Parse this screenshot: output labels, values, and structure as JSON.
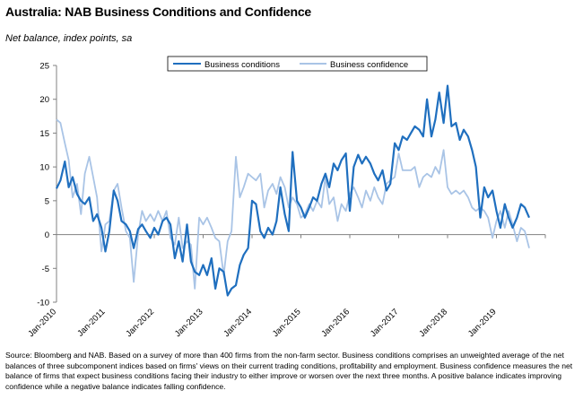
{
  "title": "Australia: NAB Business Conditions and Confidence",
  "subtitle": "Net balance, index points, sa",
  "source": "Source: Bloomberg and NAB. Based on a survey of more than 400 firms from the non-farm sector.  Business conditions comprises an unweighted average of the net balances of three subcomponent indices based on firms' views on their current trading conditions, profitability and employment.  Business confidence measures the net balance of firms that expect business conditions facing their industry to either improve or worsen over the next three months.  A positive balance indicates improving confidence while a negative balance indicates falling confidence.",
  "colors": {
    "conditions": "#1f6fbf",
    "confidence": "#a9c4e6",
    "axis": "#808080"
  },
  "chart_data": {
    "type": "line",
    "title": "Australia: NAB Business Conditions and Confidence",
    "ylabel": "Net balance, index points, sa",
    "ylim": [
      -10,
      25
    ],
    "yticks": [
      -10,
      -5,
      0,
      5,
      10,
      15,
      20,
      25
    ],
    "xlim": [
      2010.0,
      2020.0
    ],
    "xticks": [
      {
        "label": "Jan-2010",
        "x": 2010.0
      },
      {
        "label": "Jan-2011",
        "x": 2011.0
      },
      {
        "label": "Jan-2012",
        "x": 2012.0
      },
      {
        "label": "Jan-2013",
        "x": 2013.0
      },
      {
        "label": "Jan-2014",
        "x": 2014.0
      },
      {
        "label": "Jan-2015",
        "x": 2015.0
      },
      {
        "label": "Jan-2016",
        "x": 2016.0
      },
      {
        "label": "Jan-2017",
        "x": 2017.0
      },
      {
        "label": "Jan-2018",
        "x": 2018.0
      },
      {
        "label": "Jan-2019",
        "x": 2019.0
      }
    ],
    "legend_position": "top",
    "series": [
      {
        "name": "Business conditions",
        "points": [
          [
            2010.0,
            6.8
          ],
          [
            2010.08,
            8.0
          ],
          [
            2010.17,
            10.8
          ],
          [
            2010.25,
            7.0
          ],
          [
            2010.33,
            8.5
          ],
          [
            2010.42,
            6.0
          ],
          [
            2010.5,
            5.0
          ],
          [
            2010.58,
            4.5
          ],
          [
            2010.67,
            5.5
          ],
          [
            2010.75,
            2.0
          ],
          [
            2010.83,
            3.0
          ],
          [
            2010.92,
            1.0
          ],
          [
            2011.0,
            -2.5
          ],
          [
            2011.08,
            0.5
          ],
          [
            2011.17,
            6.5
          ],
          [
            2011.25,
            5.0
          ],
          [
            2011.33,
            2.0
          ],
          [
            2011.42,
            1.5
          ],
          [
            2011.5,
            0.5
          ],
          [
            2011.58,
            -2.0
          ],
          [
            2011.67,
            0.8
          ],
          [
            2011.75,
            1.5
          ],
          [
            2011.83,
            0.5
          ],
          [
            2011.92,
            -0.5
          ],
          [
            2012.0,
            1.0
          ],
          [
            2012.08,
            0.0
          ],
          [
            2012.17,
            2.0
          ],
          [
            2012.25,
            2.5
          ],
          [
            2012.33,
            1.5
          ],
          [
            2012.42,
            -3.5
          ],
          [
            2012.5,
            -1.0
          ],
          [
            2012.58,
            -4.0
          ],
          [
            2012.67,
            1.5
          ],
          [
            2012.75,
            -4.0
          ],
          [
            2012.83,
            -5.5
          ],
          [
            2012.92,
            -6.0
          ],
          [
            2013.0,
            -4.5
          ],
          [
            2013.08,
            -6.0
          ],
          [
            2013.17,
            -3.5
          ],
          [
            2013.25,
            -8.0
          ],
          [
            2013.33,
            -5.0
          ],
          [
            2013.42,
            -5.5
          ],
          [
            2013.5,
            -9.0
          ],
          [
            2013.58,
            -8.0
          ],
          [
            2013.67,
            -7.5
          ],
          [
            2013.75,
            -4.5
          ],
          [
            2013.83,
            -3.0
          ],
          [
            2013.92,
            -2.0
          ],
          [
            2014.0,
            5.0
          ],
          [
            2014.08,
            4.5
          ],
          [
            2014.17,
            0.5
          ],
          [
            2014.25,
            -0.5
          ],
          [
            2014.33,
            1.0
          ],
          [
            2014.42,
            0.0
          ],
          [
            2014.5,
            2.0
          ],
          [
            2014.58,
            7.0
          ],
          [
            2014.67,
            3.0
          ],
          [
            2014.75,
            0.5
          ],
          [
            2014.83,
            12.2
          ],
          [
            2014.92,
            5.0
          ],
          [
            2015.0,
            4.0
          ],
          [
            2015.08,
            2.5
          ],
          [
            2015.17,
            4.0
          ],
          [
            2015.25,
            5.5
          ],
          [
            2015.33,
            5.0
          ],
          [
            2015.42,
            7.5
          ],
          [
            2015.5,
            9.0
          ],
          [
            2015.58,
            7.0
          ],
          [
            2015.67,
            10.5
          ],
          [
            2015.75,
            9.5
          ],
          [
            2015.83,
            11.0
          ],
          [
            2015.92,
            12.0
          ],
          [
            2016.0,
            3.5
          ],
          [
            2016.08,
            10.0
          ],
          [
            2016.17,
            11.8
          ],
          [
            2016.25,
            10.5
          ],
          [
            2016.33,
            11.5
          ],
          [
            2016.42,
            10.5
          ],
          [
            2016.5,
            9.0
          ],
          [
            2016.58,
            8.0
          ],
          [
            2016.67,
            9.5
          ],
          [
            2016.75,
            6.5
          ],
          [
            2016.83,
            7.5
          ],
          [
            2016.92,
            13.5
          ],
          [
            2017.0,
            12.5
          ],
          [
            2017.08,
            14.5
          ],
          [
            2017.17,
            14.0
          ],
          [
            2017.25,
            15.0
          ],
          [
            2017.33,
            16.0
          ],
          [
            2017.42,
            15.5
          ],
          [
            2017.5,
            14.5
          ],
          [
            2017.58,
            20.0
          ],
          [
            2017.67,
            14.5
          ],
          [
            2017.75,
            17.0
          ],
          [
            2017.83,
            21.0
          ],
          [
            2017.92,
            16.5
          ],
          [
            2018.0,
            22.0
          ],
          [
            2018.08,
            16.0
          ],
          [
            2018.17,
            16.5
          ],
          [
            2018.25,
            14.0
          ],
          [
            2018.33,
            15.5
          ],
          [
            2018.42,
            14.5
          ],
          [
            2018.5,
            12.5
          ],
          [
            2018.58,
            10.0
          ],
          [
            2018.67,
            2.5
          ],
          [
            2018.75,
            7.0
          ],
          [
            2018.83,
            5.5
          ],
          [
            2018.92,
            6.5
          ],
          [
            2019.0,
            3.5
          ],
          [
            2019.08,
            1.0
          ],
          [
            2019.17,
            4.5
          ],
          [
            2019.25,
            2.5
          ],
          [
            2019.33,
            1.0
          ],
          [
            2019.42,
            2.5
          ],
          [
            2019.5,
            4.5
          ],
          [
            2019.58,
            4.0
          ],
          [
            2019.67,
            2.5
          ]
        ]
      },
      {
        "name": "Business confidence",
        "points": [
          [
            2010.0,
            17.0
          ],
          [
            2010.08,
            16.5
          ],
          [
            2010.17,
            13.5
          ],
          [
            2010.25,
            11.0
          ],
          [
            2010.33,
            5.5
          ],
          [
            2010.42,
            7.5
          ],
          [
            2010.5,
            3.0
          ],
          [
            2010.58,
            9.0
          ],
          [
            2010.67,
            11.5
          ],
          [
            2010.75,
            8.5
          ],
          [
            2010.83,
            5.5
          ],
          [
            2010.92,
            -2.5
          ],
          [
            2011.0,
            1.5
          ],
          [
            2011.08,
            2.0
          ],
          [
            2011.17,
            6.5
          ],
          [
            2011.25,
            7.5
          ],
          [
            2011.33,
            4.0
          ],
          [
            2011.42,
            0.5
          ],
          [
            2011.5,
            -0.5
          ],
          [
            2011.58,
            -7.0
          ],
          [
            2011.67,
            0.0
          ],
          [
            2011.75,
            3.5
          ],
          [
            2011.83,
            2.0
          ],
          [
            2011.92,
            3.0
          ],
          [
            2012.0,
            2.0
          ],
          [
            2012.08,
            3.5
          ],
          [
            2012.17,
            2.0
          ],
          [
            2012.25,
            3.5
          ],
          [
            2012.33,
            -0.5
          ],
          [
            2012.42,
            -1.5
          ],
          [
            2012.5,
            2.5
          ],
          [
            2012.58,
            -2.0
          ],
          [
            2012.67,
            -1.0
          ],
          [
            2012.75,
            -1.5
          ],
          [
            2012.83,
            -8.0
          ],
          [
            2012.92,
            2.5
          ],
          [
            2013.0,
            1.5
          ],
          [
            2013.08,
            2.5
          ],
          [
            2013.17,
            1.0
          ],
          [
            2013.25,
            -0.5
          ],
          [
            2013.33,
            -1.0
          ],
          [
            2013.42,
            -6.0
          ],
          [
            2013.5,
            -1.0
          ],
          [
            2013.58,
            0.5
          ],
          [
            2013.67,
            11.5
          ],
          [
            2013.75,
            5.5
          ],
          [
            2013.83,
            7.0
          ],
          [
            2013.92,
            9.0
          ],
          [
            2014.0,
            8.5
          ],
          [
            2014.08,
            8.0
          ],
          [
            2014.17,
            9.0
          ],
          [
            2014.25,
            4.0
          ],
          [
            2014.33,
            6.5
          ],
          [
            2014.42,
            7.5
          ],
          [
            2014.5,
            6.0
          ],
          [
            2014.58,
            8.5
          ],
          [
            2014.67,
            7.0
          ],
          [
            2014.75,
            4.0
          ],
          [
            2014.83,
            5.5
          ],
          [
            2014.92,
            4.5
          ],
          [
            2015.0,
            2.5
          ],
          [
            2015.08,
            3.0
          ],
          [
            2015.17,
            4.5
          ],
          [
            2015.25,
            3.5
          ],
          [
            2015.33,
            5.0
          ],
          [
            2015.42,
            4.0
          ],
          [
            2015.5,
            8.5
          ],
          [
            2015.58,
            4.5
          ],
          [
            2015.67,
            5.5
          ],
          [
            2015.75,
            2.0
          ],
          [
            2015.83,
            4.5
          ],
          [
            2015.92,
            3.5
          ],
          [
            2016.0,
            6.0
          ],
          [
            2016.08,
            7.0
          ],
          [
            2016.17,
            5.5
          ],
          [
            2016.25,
            4.0
          ],
          [
            2016.33,
            6.5
          ],
          [
            2016.42,
            5.0
          ],
          [
            2016.5,
            7.0
          ],
          [
            2016.58,
            5.5
          ],
          [
            2016.67,
            4.5
          ],
          [
            2016.75,
            7.5
          ],
          [
            2016.83,
            8.0
          ],
          [
            2016.92,
            8.5
          ],
          [
            2017.0,
            12.0
          ],
          [
            2017.08,
            9.5
          ],
          [
            2017.17,
            9.5
          ],
          [
            2017.25,
            9.5
          ],
          [
            2017.33,
            10.0
          ],
          [
            2017.42,
            7.0
          ],
          [
            2017.5,
            8.5
          ],
          [
            2017.58,
            9.0
          ],
          [
            2017.67,
            8.5
          ],
          [
            2017.75,
            10.0
          ],
          [
            2017.83,
            9.0
          ],
          [
            2017.92,
            12.5
          ],
          [
            2018.0,
            7.0
          ],
          [
            2018.08,
            6.0
          ],
          [
            2018.17,
            6.5
          ],
          [
            2018.25,
            6.0
          ],
          [
            2018.33,
            6.5
          ],
          [
            2018.42,
            5.5
          ],
          [
            2018.5,
            4.0
          ],
          [
            2018.58,
            3.5
          ],
          [
            2018.67,
            4.0
          ],
          [
            2018.75,
            3.5
          ],
          [
            2018.83,
            2.5
          ],
          [
            2018.92,
            -0.5
          ],
          [
            2019.0,
            2.0
          ],
          [
            2019.08,
            3.5
          ],
          [
            2019.17,
            1.0
          ],
          [
            2019.25,
            3.5
          ],
          [
            2019.33,
            1.5
          ],
          [
            2019.42,
            -1.0
          ],
          [
            2019.5,
            1.0
          ],
          [
            2019.58,
            0.5
          ],
          [
            2019.67,
            -2.0
          ]
        ]
      }
    ]
  }
}
